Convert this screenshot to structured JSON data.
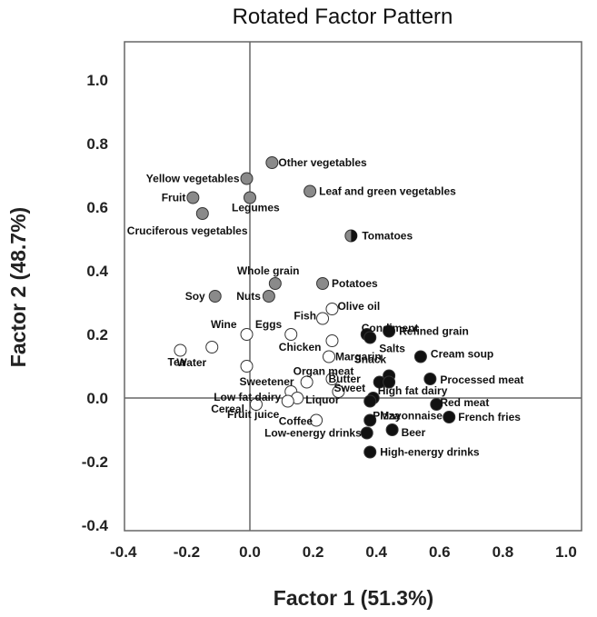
{
  "chart_data": {
    "type": "scatter",
    "title": "Rotated Factor Pattern",
    "xlabel": "Factor 1 (51.3%)",
    "ylabel": "Factor 2 (48.7%)",
    "xlim": [
      -0.45,
      1.15
    ],
    "ylim": [
      -0.45,
      1.1
    ],
    "xticks": [
      "-0.4",
      "-0.2",
      "0.0",
      "0.2",
      "0.4",
      "0.6",
      "0.8",
      "1.0"
    ],
    "xtick_values": [
      -0.4,
      -0.2,
      0.0,
      0.2,
      0.4,
      0.6,
      0.8,
      1.0
    ],
    "yticks": [
      "1.0",
      "0.8",
      "0.6",
      "0.4",
      "0.2",
      "0.0",
      "-0.2",
      "-0.4"
    ],
    "ytick_values": [
      1.0,
      0.8,
      0.6,
      0.4,
      0.2,
      0.0,
      -0.2,
      -0.4
    ],
    "grid": false,
    "legend": "none",
    "colors": {
      "grey": "#8a8a8a",
      "black": "#111111",
      "white": "#ffffff",
      "stroke": "#333333",
      "axis": "#666666"
    },
    "points": [
      {
        "label": "Other vegetables",
        "x": 0.07,
        "y": 0.74,
        "fill": "grey"
      },
      {
        "label": "Yellow vegetables",
        "x": -0.01,
        "y": 0.69,
        "fill": "grey"
      },
      {
        "label": "Fruit",
        "x": -0.18,
        "y": 0.63,
        "fill": "grey"
      },
      {
        "label": "Legumes",
        "x": 0.0,
        "y": 0.63,
        "fill": "grey"
      },
      {
        "label": "Leaf and green vegetables",
        "x": 0.19,
        "y": 0.65,
        "fill": "grey"
      },
      {
        "label": "Cruciferous vegetables",
        "x": -0.15,
        "y": 0.58,
        "fill": "grey"
      },
      {
        "label": "Tomatoes",
        "x": 0.32,
        "y": 0.51,
        "fill": "half"
      },
      {
        "label": "Whole grain",
        "x": 0.08,
        "y": 0.36,
        "fill": "grey"
      },
      {
        "label": "Potatoes",
        "x": 0.23,
        "y": 0.36,
        "fill": "grey"
      },
      {
        "label": "Soy",
        "x": -0.11,
        "y": 0.32,
        "fill": "grey"
      },
      {
        "label": "Nuts",
        "x": 0.06,
        "y": 0.32,
        "fill": "grey"
      },
      {
        "label": "Olive oil",
        "x": 0.26,
        "y": 0.28,
        "fill": "white"
      },
      {
        "label": "Fish",
        "x": 0.23,
        "y": 0.25,
        "fill": "white"
      },
      {
        "label": "Condiment",
        "x": 0.37,
        "y": 0.2,
        "fill": "black"
      },
      {
        "label": "Refined grain",
        "x": 0.44,
        "y": 0.21,
        "fill": "black"
      },
      {
        "label": "Wine",
        "x": -0.01,
        "y": 0.2,
        "fill": "white"
      },
      {
        "label": "Eggs",
        "x": 0.13,
        "y": 0.2,
        "fill": "white"
      },
      {
        "label": "Salts",
        "x": 0.38,
        "y": 0.19,
        "fill": "black"
      },
      {
        "label": "Chicken",
        "x": 0.26,
        "y": 0.18,
        "fill": "white"
      },
      {
        "label": "Tea",
        "x": -0.22,
        "y": 0.15,
        "fill": "white"
      },
      {
        "label": "Water",
        "x": -0.12,
        "y": 0.16,
        "fill": "white"
      },
      {
        "label": "Cream soup",
        "x": 0.54,
        "y": 0.13,
        "fill": "black"
      },
      {
        "label": "Margarin",
        "x": 0.25,
        "y": 0.13,
        "fill": "white"
      },
      {
        "label": "Sweetener",
        "x": -0.01,
        "y": 0.1,
        "fill": "white"
      },
      {
        "label": "Snack",
        "x": 0.44,
        "y": 0.07,
        "fill": "black"
      },
      {
        "label": "Organ meat",
        "x": 0.18,
        "y": 0.05,
        "fill": "white"
      },
      {
        "label": "Butter",
        "x": 0.26,
        "y": 0.06,
        "fill": "white"
      },
      {
        "label": "Processed meat",
        "x": 0.57,
        "y": 0.06,
        "fill": "black"
      },
      {
        "label": "",
        "x": 0.41,
        "y": 0.05,
        "fill": "black"
      },
      {
        "label": "",
        "x": 0.44,
        "y": 0.05,
        "fill": "black"
      },
      {
        "label": "Low fat dairy",
        "x": 0.13,
        "y": 0.02,
        "fill": "white"
      },
      {
        "label": "Sweet",
        "x": 0.28,
        "y": 0.02,
        "fill": "white"
      },
      {
        "label": "High fat dairy",
        "x": 0.39,
        "y": 0.0,
        "fill": "black"
      },
      {
        "label": "Liquor",
        "x": 0.15,
        "y": 0.0,
        "fill": "white"
      },
      {
        "label": "",
        "x": 0.12,
        "y": -0.01,
        "fill": "white"
      },
      {
        "label": "Cereal",
        "x": 0.02,
        "y": -0.02,
        "fill": "white"
      },
      {
        "label": "Pizza",
        "x": 0.38,
        "y": -0.01,
        "fill": "black"
      },
      {
        "label": "Red meat",
        "x": 0.59,
        "y": -0.02,
        "fill": "black"
      },
      {
        "label": "Coffee",
        "x": 0.21,
        "y": -0.07,
        "fill": "white"
      },
      {
        "label": "Mayonnaise",
        "x": 0.38,
        "y": -0.07,
        "fill": "black"
      },
      {
        "label": "French fries",
        "x": 0.63,
        "y": -0.06,
        "fill": "black"
      },
      {
        "label": "Beer",
        "x": 0.45,
        "y": -0.1,
        "fill": "black"
      },
      {
        "label": "Low-energy drinks",
        "x": 0.37,
        "y": -0.11,
        "fill": "black"
      },
      {
        "label": "High-energy drinks",
        "x": 0.38,
        "y": -0.17,
        "fill": "black"
      }
    ],
    "extra_labels": [
      {
        "text": "Fruit juice",
        "x": 0.0,
        "y": -0.06,
        "for": "Cereal/Coffee cluster"
      }
    ]
  }
}
